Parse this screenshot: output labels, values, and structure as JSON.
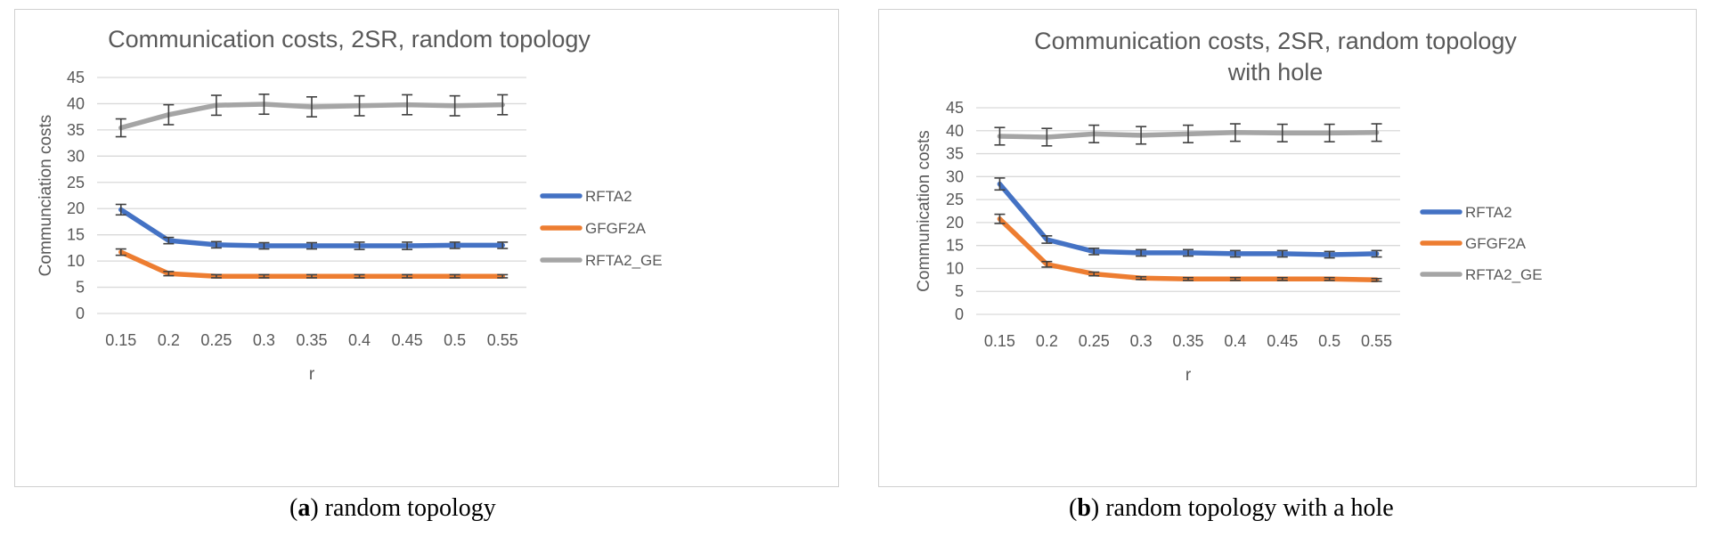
{
  "chart_data": [
    {
      "type": "line",
      "title": "Communication costs, 2SR, random topology",
      "xlabel": "r",
      "ylabel": "Communciation costs",
      "ylim": [
        0,
        45
      ],
      "yticks": [
        0,
        5,
        10,
        15,
        20,
        25,
        30,
        35,
        40,
        45
      ],
      "categories": [
        "0.15",
        "0.2",
        "0.25",
        "0.3",
        "0.35",
        "0.4",
        "0.45",
        "0.5",
        "0.55"
      ],
      "legend_position": "right",
      "series": [
        {
          "name": "RFTA2",
          "color": "#4472c4",
          "values": [
            19.8,
            13.9,
            13.1,
            12.9,
            12.9,
            12.9,
            12.9,
            13.0,
            13.0
          ],
          "errors": [
            1.0,
            0.6,
            0.6,
            0.6,
            0.6,
            0.7,
            0.7,
            0.6,
            0.6
          ]
        },
        {
          "name": "GFGF2A",
          "color": "#ed7d31",
          "values": [
            11.7,
            7.6,
            7.1,
            7.1,
            7.1,
            7.1,
            7.1,
            7.1,
            7.1
          ],
          "errors": [
            0.6,
            0.4,
            0.3,
            0.3,
            0.3,
            0.3,
            0.3,
            0.3,
            0.3
          ]
        },
        {
          "name": "RFTA2_GE",
          "color": "#a5a5a5",
          "values": [
            35.4,
            37.9,
            39.7,
            39.9,
            39.4,
            39.6,
            39.8,
            39.6,
            39.8
          ],
          "errors": [
            1.7,
            1.9,
            1.9,
            1.9,
            1.9,
            1.9,
            1.9,
            1.9,
            1.9
          ]
        }
      ]
    },
    {
      "type": "line",
      "title_lines": [
        "Communication costs, 2SR, random topology",
        "with hole"
      ],
      "xlabel": "r",
      "ylabel": "Communication costs",
      "ylim": [
        0,
        45
      ],
      "yticks": [
        0,
        5,
        10,
        15,
        20,
        25,
        30,
        35,
        40,
        45
      ],
      "categories": [
        "0.15",
        "0.2",
        "0.25",
        "0.3",
        "0.35",
        "0.4",
        "0.45",
        "0.5",
        "0.55"
      ],
      "legend_position": "right",
      "series": [
        {
          "name": "RFTA2",
          "color": "#4472c4",
          "values": [
            28.4,
            16.3,
            13.7,
            13.4,
            13.4,
            13.2,
            13.2,
            13.0,
            13.2
          ],
          "errors": [
            1.3,
            0.8,
            0.7,
            0.7,
            0.7,
            0.7,
            0.7,
            0.7,
            0.7
          ]
        },
        {
          "name": "GFGF2A",
          "color": "#ed7d31",
          "values": [
            20.8,
            10.9,
            8.8,
            7.9,
            7.7,
            7.7,
            7.7,
            7.7,
            7.5
          ],
          "errors": [
            1.0,
            0.6,
            0.4,
            0.3,
            0.3,
            0.3,
            0.3,
            0.3,
            0.3
          ]
        },
        {
          "name": "RFTA2_GE",
          "color": "#a5a5a5",
          "values": [
            38.8,
            38.6,
            39.3,
            39.0,
            39.3,
            39.6,
            39.5,
            39.5,
            39.6
          ],
          "errors": [
            1.9,
            1.9,
            1.9,
            1.9,
            1.9,
            1.9,
            1.9,
            1.9,
            1.9
          ]
        }
      ]
    }
  ],
  "captions": [
    {
      "label": "a",
      "text": ") random topology"
    },
    {
      "label": "b",
      "text": ") random topology with a hole"
    }
  ]
}
